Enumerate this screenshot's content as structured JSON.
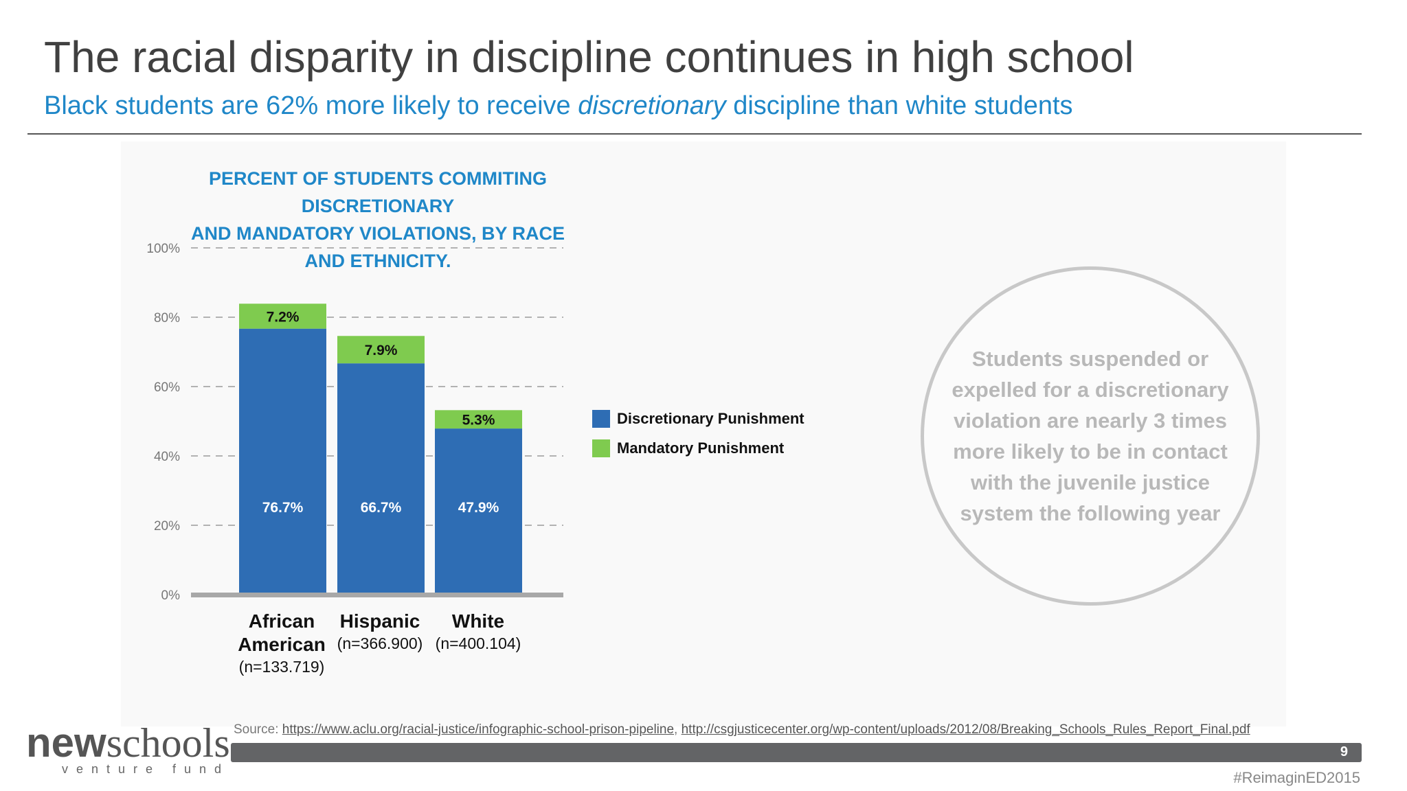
{
  "slide": {
    "title": "The racial disparity in discipline continues in high school",
    "subtitle_pre": "Black students are 62% more likely to receive ",
    "subtitle_em": "discretionary",
    "subtitle_post": " discipline than white students",
    "page_number": "9",
    "hashtag": "#ReimaginED2015"
  },
  "chart_title": {
    "line1": "PERCENT OF STUDENTS COMMITING DISCRETIONARY",
    "line2": "AND MANDATORY VIOLATIONS, BY RACE AND ETHNICITY."
  },
  "chart_data": {
    "type": "bar",
    "stacked": true,
    "categories": [
      "African American",
      "Hispanic",
      "White"
    ],
    "category_labels": [
      {
        "line1": "African",
        "line2": "American",
        "n": "(n=133.719)"
      },
      {
        "line1": "Hispanic",
        "line2": "",
        "n": "(n=366.900)"
      },
      {
        "line1": "White",
        "line2": "",
        "n": "(n=400.104)"
      }
    ],
    "series": [
      {
        "name": "Discretionary Punishment",
        "color": "#2e6db4",
        "values": [
          76.7,
          66.7,
          47.9
        ],
        "labels": [
          "76.7%",
          "66.7%",
          "47.9%"
        ]
      },
      {
        "name": "Mandatory Punishment",
        "color": "#7fcb4f",
        "values": [
          7.2,
          7.9,
          5.3
        ],
        "labels": [
          "7.2%",
          "7.9%",
          "5.3%"
        ]
      }
    ],
    "y_ticks": [
      "0%",
      "20%",
      "40%",
      "60%",
      "80%",
      "100%"
    ],
    "ylim": [
      0,
      100
    ],
    "grid": "dashed",
    "legend_position": "right"
  },
  "callout": {
    "text": "Students suspended or expelled for a discretionary violation are nearly 3 times more likely to be in contact with the juvenile justice system the following year"
  },
  "source": {
    "label": "Source: ",
    "link1": "https://www.aclu.org/racial-justice/infographic-school-prison-pipeline",
    "separator": ", ",
    "link2": "http://csgjusticecenter.org/wp-content/uploads/2012/08/Breaking_Schools_Rules_Report_Final.pdf"
  },
  "logo": {
    "bold": "new",
    "serif": "schools",
    "sub": "venture fund"
  }
}
